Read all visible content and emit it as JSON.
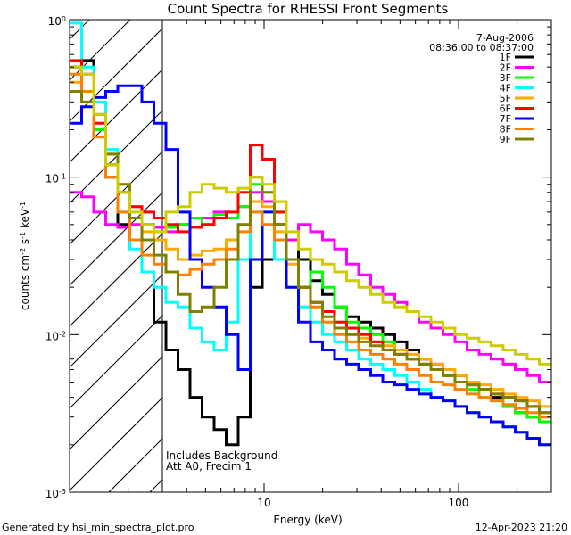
{
  "chart_data": {
    "type": "line",
    "title": "Count Spectra for RHESSI Front Segments",
    "xlabel": "Energy (keV)",
    "ylabel_parts": {
      "base": "counts cm",
      "exp1": "-2",
      "mid": " s",
      "exp2": "-1",
      "unit": " keV",
      "exp3": "-1"
    },
    "x_scale": "log",
    "y_scale": "log",
    "xlim": [
      1.0,
      300.0
    ],
    "ylim": [
      0.001,
      1.0
    ],
    "x_ticks": [
      {
        "value": 10,
        "label": "10"
      },
      {
        "value": 100,
        "label": "100"
      }
    ],
    "y_ticks": [
      {
        "value": 1.0,
        "base": "10",
        "exp": "0"
      },
      {
        "value": 0.1,
        "base": "10",
        "exp": "-1"
      },
      {
        "value": 0.01,
        "base": "10",
        "exp": "-2"
      },
      {
        "value": 0.001,
        "base": "10",
        "exp": "-3"
      }
    ],
    "hatched_region_x": [
      1.0,
      3.0
    ],
    "date": "7-Aug-2006",
    "time_range": "08:36:00 to 08:37:00",
    "note_lines": [
      "Includes Background",
      "Att A0, Frecim 1"
    ],
    "legend_position": "top-right",
    "series": [
      {
        "name": "1F",
        "color": "#000000",
        "values": [
          0.5,
          0.55,
          0.2,
          0.1,
          0.05,
          0.04,
          0.025,
          0.012,
          0.008,
          0.006,
          0.004,
          0.003,
          0.0025,
          0.002,
          0.003,
          0.02,
          0.03,
          0.05,
          0.04,
          0.03,
          0.022,
          0.018,
          0.015,
          0.013,
          0.012,
          0.011,
          0.01,
          0.009,
          0.008,
          0.007,
          0.0065,
          0.006,
          0.0055,
          0.005,
          0.0045,
          0.004,
          0.0035,
          0.0032,
          0.003,
          0.0028
        ]
      },
      {
        "name": "2F",
        "color": "#ff00ff",
        "values": [
          0.08,
          0.075,
          0.06,
          0.05,
          0.048,
          0.05,
          0.05,
          0.048,
          0.045,
          0.05,
          0.048,
          0.055,
          0.06,
          0.055,
          0.065,
          0.08,
          0.07,
          0.05,
          0.04,
          0.05,
          0.045,
          0.04,
          0.035,
          0.028,
          0.024,
          0.02,
          0.018,
          0.016,
          0.014,
          0.012,
          0.011,
          0.01,
          0.009,
          0.008,
          0.0075,
          0.007,
          0.0065,
          0.006,
          0.0055,
          0.005
        ]
      },
      {
        "name": "3F",
        "color": "#00ff00",
        "values": [
          0.35,
          0.3,
          0.2,
          0.12,
          0.08,
          0.055,
          0.05,
          0.045,
          0.048,
          0.05,
          0.055,
          0.05,
          0.058,
          0.055,
          0.065,
          0.09,
          0.08,
          0.06,
          0.03,
          0.02,
          0.025,
          0.02,
          0.015,
          0.012,
          0.011,
          0.01,
          0.009,
          0.008,
          0.007,
          0.0065,
          0.006,
          0.0055,
          0.005,
          0.0045,
          0.004,
          0.0038,
          0.0035,
          0.0032,
          0.003,
          0.0028
        ]
      },
      {
        "name": "4F",
        "color": "#00ffff",
        "values": [
          0.95,
          0.5,
          0.3,
          0.15,
          0.06,
          0.035,
          0.025,
          0.02,
          0.016,
          0.015,
          0.011,
          0.009,
          0.008,
          0.012,
          0.03,
          0.06,
          0.05,
          0.03,
          0.02,
          0.015,
          0.012,
          0.01,
          0.009,
          0.008,
          0.007,
          0.0065,
          0.006,
          0.0055,
          0.005,
          0.0045,
          0.004,
          0.0038,
          0.0035,
          0.0032,
          0.003,
          0.0028,
          0.0026,
          0.0024,
          0.0022,
          0.002
        ]
      },
      {
        "name": "5F",
        "color": "#ffaa00",
        "values": [
          0.4,
          0.35,
          0.25,
          0.14,
          0.09,
          0.065,
          0.045,
          0.04,
          0.035,
          0.03,
          0.032,
          0.034,
          0.035,
          0.04,
          0.05,
          0.07,
          0.065,
          0.045,
          0.028,
          0.02,
          0.016,
          0.014,
          0.012,
          0.01,
          0.0095,
          0.009,
          0.0085,
          0.008,
          0.0075,
          0.007,
          0.0065,
          0.006,
          0.0055,
          0.005,
          0.0048,
          0.0045,
          0.0042,
          0.004,
          0.0038,
          0.0035
        ]
      },
      {
        "name": "6F",
        "color": "#ff0000",
        "values": [
          0.55,
          0.45,
          0.22,
          0.12,
          0.08,
          0.065,
          0.06,
          0.055,
          0.05,
          0.045,
          0.048,
          0.05,
          0.055,
          0.06,
          0.08,
          0.16,
          0.13,
          0.06,
          0.03,
          0.02,
          0.016,
          0.014,
          0.012,
          0.011,
          0.01,
          0.009,
          0.008,
          0.0075,
          0.007,
          0.0065,
          0.006,
          0.0055,
          0.005,
          0.0048,
          0.0045,
          0.0042,
          0.004,
          0.0038,
          0.0035,
          0.0032
        ]
      },
      {
        "name": "7F",
        "color": "#0000ff",
        "values": [
          0.22,
          0.28,
          0.32,
          0.35,
          0.38,
          0.38,
          0.3,
          0.22,
          0.15,
          0.06,
          0.03,
          0.02,
          0.015,
          0.01,
          0.006,
          0.03,
          0.06,
          0.04,
          0.02,
          0.012,
          0.009,
          0.008,
          0.007,
          0.0065,
          0.006,
          0.0055,
          0.005,
          0.0048,
          0.0045,
          0.0042,
          0.004,
          0.0038,
          0.0035,
          0.0032,
          0.003,
          0.0028,
          0.0026,
          0.0024,
          0.0022,
          0.002
        ]
      },
      {
        "name": "8F",
        "color": "#ff8000",
        "values": [
          0.45,
          0.35,
          0.18,
          0.1,
          0.06,
          0.04,
          0.032,
          0.028,
          0.025,
          0.024,
          0.026,
          0.028,
          0.03,
          0.035,
          0.045,
          0.06,
          0.05,
          0.04,
          0.03,
          0.02,
          0.015,
          0.012,
          0.01,
          0.009,
          0.008,
          0.0075,
          0.007,
          0.0065,
          0.006,
          0.0055,
          0.005,
          0.0048,
          0.0045,
          0.0042,
          0.004,
          0.0038,
          0.0036,
          0.0034,
          0.0032,
          0.003
        ]
      },
      {
        "name": "9F",
        "color": "#808000",
        "values": [
          0.35,
          0.3,
          0.25,
          0.14,
          0.09,
          0.055,
          0.04,
          0.032,
          0.025,
          0.018,
          0.014,
          0.015,
          0.02,
          0.03,
          0.05,
          0.1,
          0.08,
          0.05,
          0.03,
          0.02,
          0.016,
          0.013,
          0.011,
          0.01,
          0.009,
          0.0085,
          0.008,
          0.0075,
          0.007,
          0.0065,
          0.006,
          0.0055,
          0.005,
          0.0048,
          0.0045,
          0.0042,
          0.004,
          0.0038,
          0.0035,
          0.0032
        ]
      },
      {
        "name": "",
        "color": "#cccc00",
        "values": [
          0.5,
          0.45,
          0.25,
          0.12,
          0.08,
          0.06,
          0.05,
          0.045,
          0.06,
          0.065,
          0.08,
          0.09,
          0.085,
          0.08,
          0.085,
          0.1,
          0.09,
          0.07,
          0.045,
          0.035,
          0.03,
          0.028,
          0.025,
          0.022,
          0.02,
          0.018,
          0.016,
          0.015,
          0.014,
          0.013,
          0.012,
          0.011,
          0.01,
          0.0095,
          0.009,
          0.0085,
          0.008,
          0.0075,
          0.007,
          0.0065
        ]
      }
    ]
  },
  "footer": {
    "left": "Generated by hsi_min_spectra_plot.pro",
    "right": "12-Apr-2023 21:20"
  }
}
